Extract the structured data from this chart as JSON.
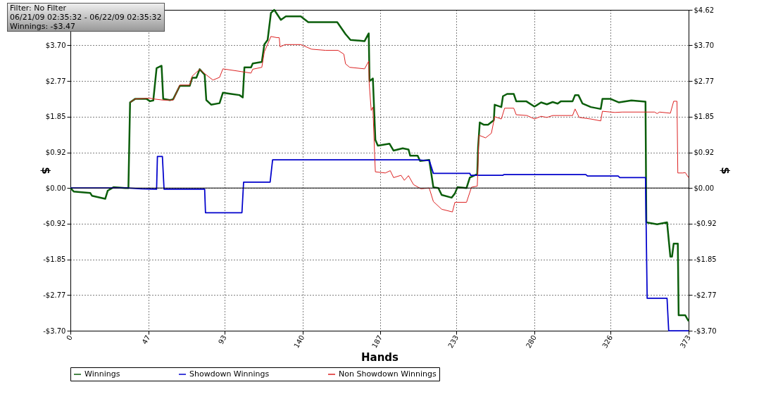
{
  "chart_data": {
    "type": "line",
    "xlabel": "Hands",
    "ylabel": "$",
    "y2label": "$",
    "annotations": [
      "Filter: No Filter",
      "06/21/09 02:35:32 - 06/22/09 02:35:32",
      "Winnings: -$3.47"
    ],
    "xlim": [
      0,
      373
    ],
    "xticks": [
      0,
      47,
      93,
      140,
      187,
      233,
      280,
      326,
      373
    ],
    "ylim": [
      -3.7,
      4.62
    ],
    "yticks": [
      {
        "value": -3.7,
        "label": "-$3.70"
      },
      {
        "value": -2.77,
        "label": "-$2.77"
      },
      {
        "value": -1.85,
        "label": "-$1.85"
      },
      {
        "value": -0.92,
        "label": "-$0.92"
      },
      {
        "value": 0,
        "label": "$0.00"
      },
      {
        "value": 0.92,
        "label": "$0.92"
      },
      {
        "value": 1.85,
        "label": "$1.85"
      },
      {
        "value": 2.77,
        "label": "$2.77"
      },
      {
        "value": 3.7,
        "label": "$3.70"
      },
      {
        "value": 4.62,
        "label": null
      }
    ],
    "y2lim": [
      -3.7,
      4.62
    ],
    "y2ticks": [
      {
        "value": -3.7,
        "label": "-$3.70"
      },
      {
        "value": -2.77,
        "label": "-$2.77"
      },
      {
        "value": -1.85,
        "label": "-$1.85"
      },
      {
        "value": -0.92,
        "label": "-$0.92"
      },
      {
        "value": 0,
        "label": "$0.00"
      },
      {
        "value": 0.92,
        "label": "$0.92"
      },
      {
        "value": 1.85,
        "label": "$1.85"
      },
      {
        "value": 2.77,
        "label": "$2.77"
      },
      {
        "value": 3.7,
        "label": "$3.70"
      },
      {
        "value": 4.62,
        "label": "$4.62"
      }
    ],
    "grid": true,
    "legend": "bottom",
    "marker": "none",
    "line_style": "solid",
    "ref_lines": [
      {
        "axis": "y",
        "value": 0,
        "color": "#000000"
      }
    ],
    "series": [
      {
        "name": "Winnings",
        "color": "#0b5e0b",
        "x": [
          0,
          2,
          12,
          13,
          21,
          22.5,
          26,
          33,
          35,
          36,
          39,
          46,
          48,
          50,
          52,
          55,
          56,
          60,
          62,
          66,
          72,
          73.5,
          76,
          78,
          81,
          82,
          85,
          90,
          92,
          97,
          102,
          104,
          105,
          109,
          110,
          115.5,
          117,
          119,
          121,
          123,
          127,
          130,
          139,
          143.5,
          161,
          166,
          169,
          177.5,
          180,
          180.5,
          182.5,
          184,
          185.5,
          192.5,
          195,
          200.5,
          204,
          205,
          209.5,
          211,
          216.5,
          219,
          222,
          224,
          230,
          232,
          233.5,
          239,
          241,
          245.5,
          246,
          247,
          249.5,
          252,
          255.5,
          256,
          260,
          261,
          263.5,
          267.5,
          269,
          275,
          280,
          284,
          287.5,
          291,
          294,
          296,
          303,
          304.5,
          306.5,
          309,
          314,
          320,
          321,
          326,
          331,
          338.5,
          347,
          347.5,
          354,
          360,
          362,
          363,
          364,
          366.5,
          367,
          371,
          373
        ],
        "values": [
          0,
          -0.09,
          -0.13,
          -0.2,
          -0.28,
          -0.07,
          0.02,
          0,
          0,
          2.22,
          2.31,
          2.31,
          2.25,
          2.27,
          3.11,
          3.17,
          2.31,
          2.28,
          2.3,
          2.65,
          2.65,
          2.86,
          2.86,
          3.08,
          2.94,
          2.28,
          2.16,
          2.2,
          2.47,
          2.44,
          2.41,
          2.35,
          3.13,
          3.13,
          3.23,
          3.27,
          3.72,
          3.84,
          4.54,
          4.62,
          4.36,
          4.45,
          4.45,
          4.3,
          4.3,
          3.99,
          3.84,
          3.81,
          4.01,
          2.77,
          2.84,
          1.25,
          1.1,
          1.15,
          0.97,
          1.03,
          1.0,
          0.84,
          0.84,
          0.7,
          0.73,
          0.02,
          0,
          -0.18,
          -0.25,
          -0.14,
          0.02,
          0,
          0.27,
          0.36,
          1.06,
          1.7,
          1.64,
          1.64,
          1.76,
          2.16,
          2.1,
          2.38,
          2.44,
          2.44,
          2.25,
          2.25,
          2.11,
          2.22,
          2.17,
          2.23,
          2.19,
          2.25,
          2.25,
          2.41,
          2.41,
          2.19,
          2.1,
          2.05,
          2.31,
          2.31,
          2.22,
          2.27,
          2.24,
          -0.89,
          -0.94,
          -0.89,
          -1.78,
          -1.78,
          -1.44,
          -1.44,
          -3.3,
          -3.3,
          -3.45
        ]
      },
      {
        "name": "Showdown Winnings",
        "color": "#0000cc",
        "x": [
          0,
          34,
          43,
          52,
          52.5,
          55.5,
          56.5,
          81,
          81.5,
          103.5,
          104.5,
          120.5,
          122,
          209.5,
          213,
          216.5,
          219,
          241,
          241.5,
          261,
          261.5,
          311,
          312,
          330.5,
          331.5,
          347,
          348,
          360,
          361,
          373
        ],
        "values": [
          0,
          0,
          -0.02,
          -0.03,
          0.82,
          0.82,
          -0.03,
          -0.03,
          -0.64,
          -0.64,
          0.15,
          0.15,
          0.73,
          0.73,
          0.72,
          0.72,
          0.38,
          0.38,
          0.33,
          0.33,
          0.35,
          0.35,
          0.31,
          0.31,
          0.27,
          0.27,
          -2.86,
          -2.86,
          -3.7,
          -3.7
        ]
      },
      {
        "name": "Non Showdown Winnings",
        "color": "#dd2222",
        "x": [
          36,
          39,
          48,
          50,
          56,
          62,
          66,
          72,
          73.5,
          78,
          81.5,
          86,
          90,
          92,
          103,
          109,
          110,
          115.5,
          117,
          121,
          124.5,
          126,
          126.5,
          129.5,
          139,
          145.5,
          154,
          161.5,
          165,
          166,
          168.5,
          177.5,
          180,
          180.3,
          181.5,
          182.5,
          183.5,
          184,
          190,
          193,
          195,
          199.5,
          201.5,
          204,
          207,
          211.5,
          216.5,
          219,
          224,
          230.5,
          232,
          239,
          242,
          245.5,
          246.5,
          250.5,
          254,
          256,
          260,
          262,
          267.5,
          269,
          275.5,
          280,
          284,
          287.5,
          291,
          303,
          304.5,
          307,
          314,
          320,
          321,
          328.5,
          333,
          352.5,
          354,
          355.5,
          362,
          364,
          366,
          366.5,
          369.5,
          371,
          373
        ],
        "values": [
          2.22,
          2.31,
          2.33,
          2.31,
          2.28,
          2.28,
          2.67,
          2.67,
          2.9,
          3.08,
          2.95,
          2.8,
          2.87,
          3.09,
          3.02,
          2.98,
          3.08,
          3.13,
          3.53,
          3.93,
          3.9,
          3.9,
          3.66,
          3.72,
          3.72,
          3.6,
          3.57,
          3.57,
          3.47,
          3.22,
          3.13,
          3.09,
          3.29,
          2.71,
          2.01,
          2.1,
          0.93,
          0.42,
          0.39,
          0.45,
          0.27,
          0.33,
          0.2,
          0.32,
          0.09,
          -0.02,
          0,
          -0.35,
          -0.55,
          -0.62,
          -0.37,
          -0.37,
          0.02,
          0.05,
          1.37,
          1.3,
          1.42,
          1.85,
          1.79,
          2.07,
          2.07,
          1.9,
          1.88,
          1.79,
          1.86,
          1.83,
          1.88,
          1.88,
          2.05,
          1.83,
          1.79,
          1.74,
          1.99,
          1.96,
          1.97,
          1.97,
          1.93,
          1.97,
          1.94,
          2.25,
          2.25,
          0.39,
          0.39,
          0.4,
          0.27
        ]
      }
    ]
  }
}
